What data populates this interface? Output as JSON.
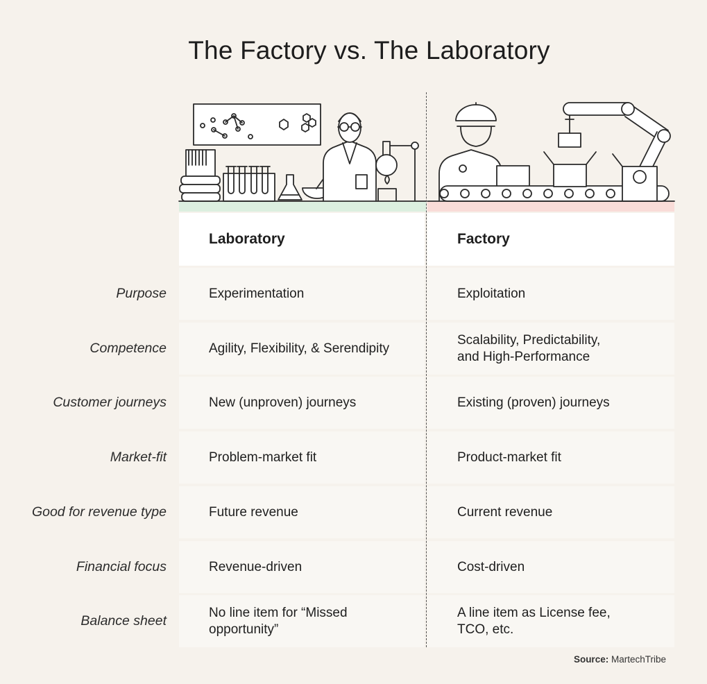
{
  "title": "The Factory vs. The Laboratory",
  "columns": {
    "laboratory": "Laboratory",
    "factory": "Factory"
  },
  "rows": [
    {
      "label": "Purpose",
      "laboratory": "Experimentation",
      "factory": "Exploitation"
    },
    {
      "label": "Competence",
      "laboratory": "Agility, Flexibility, & Serendipity",
      "factory": "Scalability, Predictability,\nand High-Performance"
    },
    {
      "label": "Customer journeys",
      "laboratory": "New (unproven) journeys",
      "factory": "Existing (proven) journeys"
    },
    {
      "label": "Market-fit",
      "laboratory": "Problem-market fit",
      "factory": "Product-market fit"
    },
    {
      "label": "Good for revenue type",
      "laboratory": "Future revenue",
      "factory": "Current revenue"
    },
    {
      "label": "Financial focus",
      "laboratory": "Revenue-driven",
      "factory": "Cost-driven"
    },
    {
      "label": "Balance sheet",
      "laboratory": "No line item for “Missed\nopportunity”",
      "factory": "A line item as License fee,\nTCO, etc."
    }
  ],
  "source": {
    "label": "Source:",
    "value": "MartechTribe"
  },
  "colors": {
    "background": "#f6f2ec",
    "laboratory_band": "#dcefe0",
    "factory_band": "#f9dcd8"
  },
  "icons": [
    "laboratory-scientist-illustration",
    "factory-worker-conveyor-illustration"
  ]
}
